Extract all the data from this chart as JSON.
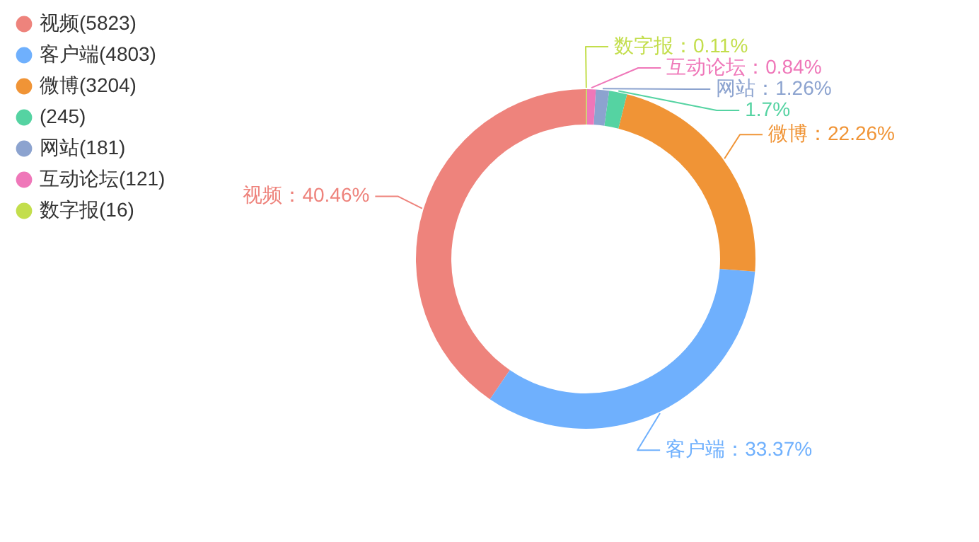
{
  "chart_data": {
    "type": "donut",
    "categories": [
      "视频(5823)",
      "客户端(4803)",
      "微博(3204)",
      "(245)",
      "网站(181)",
      "互动论坛(121)",
      "数字报(16)"
    ],
    "values": [
      40.46,
      33.37,
      22.26,
      1.7,
      1.26,
      0.84,
      0.11
    ],
    "colors": [
      "#ee837c",
      "#6fb0fd",
      "#f09436",
      "#55d3a2",
      "#8ca3cf",
      "#ef77b9",
      "#c3de4c"
    ],
    "value_labels": [
      "视频：40.46%",
      "客户端：33.37%",
      "微博：22.26%",
      "1.7%",
      "网站：1.26%",
      "互动论坛：0.84%",
      "数字报：0.11%"
    ],
    "legend": "top left"
  }
}
